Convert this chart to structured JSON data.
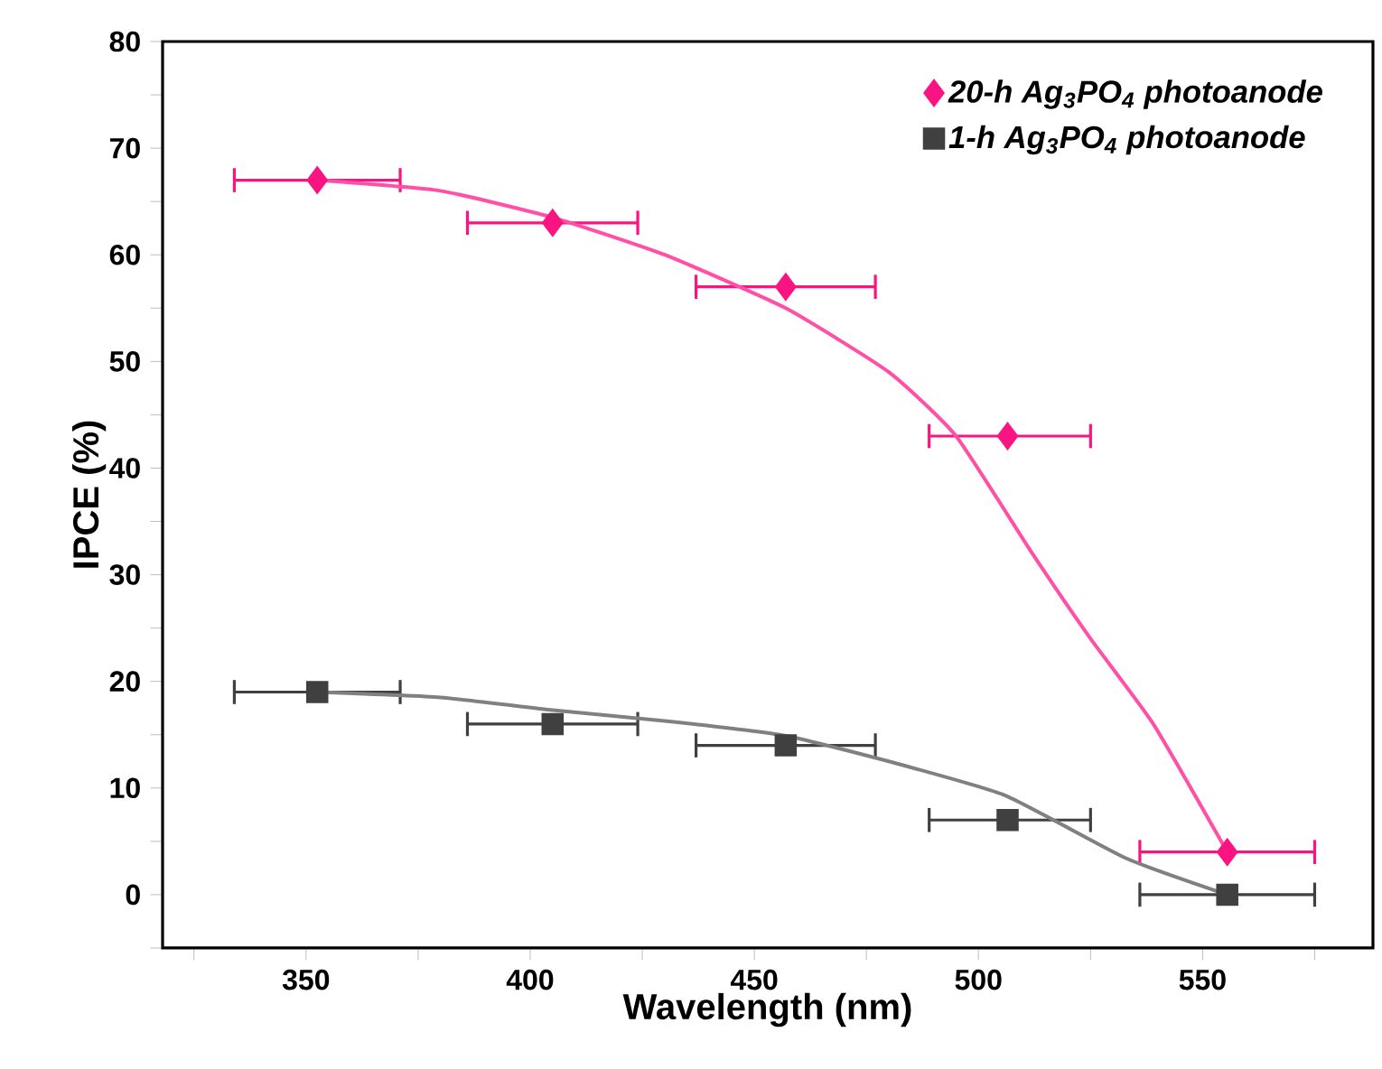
{
  "chart_data": {
    "type": "scatter",
    "xlabel": "Wavelength (nm)",
    "ylabel": "IPCE (%)",
    "xlim": [
      318,
      588
    ],
    "ylim": [
      -5,
      80
    ],
    "xticks": [
      {
        "value": 325,
        "label": null
      },
      350,
      {
        "value": 375,
        "label": null
      },
      400,
      {
        "value": 425,
        "label": null
      },
      450,
      {
        "value": 475,
        "label": null
      },
      500,
      {
        "value": 525,
        "label": null
      },
      550,
      {
        "value": 575,
        "label": null
      }
    ],
    "yticks": [
      {
        "value": -5,
        "label": null
      },
      0,
      {
        "value": 5,
        "label": null
      },
      10,
      {
        "value": 15,
        "label": null
      },
      20,
      {
        "value": 25,
        "label": null
      },
      30,
      {
        "value": 35,
        "label": null
      },
      40,
      {
        "value": 45,
        "label": null
      },
      50,
      {
        "value": 55,
        "label": null
      },
      60,
      {
        "value": 65,
        "label": null
      },
      70,
      {
        "value": 75,
        "label": null
      },
      80
    ],
    "legend": "top right",
    "grid": false,
    "series": [
      {
        "name": "20-h Ag$_{3}$PO$_{4}$ photoanode",
        "marker": "diamond",
        "color": "#fa1482",
        "x": [
          352.5,
          405,
          457,
          506.5,
          555.5
        ],
        "values": [
          67,
          63,
          57,
          43,
          4
        ],
        "xerrors": [
          [
            334,
            371
          ],
          [
            386,
            424
          ],
          [
            437,
            477
          ],
          [
            489,
            525
          ],
          [
            536,
            575
          ]
        ]
      },
      {
        "name": "1-h Ag$_{3}$PO$_{4}$ photoanode",
        "marker": "square",
        "color": "#404040",
        "x": [
          352.5,
          405,
          457,
          506.5,
          555.5
        ],
        "values": [
          19,
          16,
          14,
          7,
          0
        ],
        "xerrors": [
          [
            334,
            371
          ],
          [
            386,
            424
          ],
          [
            437,
            477
          ],
          [
            489,
            525
          ],
          [
            536,
            575
          ]
        ]
      },
      {
        "type": "line",
        "marker": "none",
        "color": "#ff4fa7",
        "x": [
          352.5,
          380,
          405,
          430,
          457,
          480,
          495,
          512,
          525,
          539,
          555.5
        ],
        "values": [
          67,
          66,
          63.5,
          60,
          55,
          49,
          43,
          32,
          24,
          16,
          4
        ]
      },
      {
        "type": "line",
        "marker": "none",
        "color": "#808080",
        "x": [
          352.5,
          380,
          405,
          430,
          457,
          480,
          506,
          533,
          555.5
        ],
        "values": [
          19,
          18.5,
          17.3,
          16.3,
          14.9,
          12.5,
          9.3,
          3.4,
          0
        ]
      }
    ]
  }
}
